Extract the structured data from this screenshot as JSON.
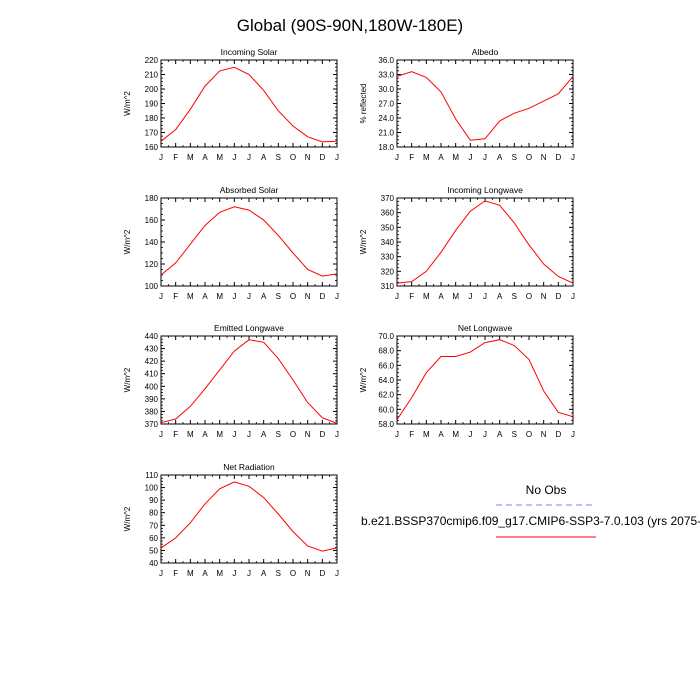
{
  "page": {
    "title": "Global (90S-90N,180W-180E)"
  },
  "legend": {
    "obs_label": "No Obs",
    "case_label": "b.e21.BSSP370cmip6.f09_g17.CMIP6-SSP3-7.0.103 (yrs 2075-",
    "colors": {
      "obs": "#7f7fff",
      "case": "#ff0000"
    }
  },
  "months": [
    "J",
    "F",
    "M",
    "A",
    "M",
    "J",
    "J",
    "A",
    "S",
    "O",
    "N",
    "D",
    "J"
  ],
  "chart_data": [
    {
      "type": "line",
      "title": "Incoming Solar",
      "ylabel": "W/m^2",
      "ylim": [
        160,
        220
      ],
      "yticks": [
        160,
        170,
        180,
        190,
        200,
        210,
        220
      ],
      "ytick_labels": [
        "160",
        "170",
        "180",
        "190",
        "200",
        "210",
        "220"
      ],
      "x": [
        "J",
        "F",
        "M",
        "A",
        "M",
        "J",
        "J",
        "A",
        "S",
        "O",
        "N",
        "D",
        "J"
      ],
      "series": [
        {
          "values": [
            164,
            172,
            186,
            202,
            212.5,
            215,
            210,
            199,
            185,
            174.5,
            167,
            163.5,
            164
          ],
          "color": "#ff0000"
        }
      ]
    },
    {
      "type": "line",
      "title": "Albedo",
      "ylabel": "% reflected",
      "ylim": [
        18.0,
        36.0
      ],
      "yticks": [
        18,
        21,
        24,
        27,
        30,
        33,
        36
      ],
      "ytick_labels": [
        "18.0",
        "21.0",
        "24.0",
        "27.0",
        "30.0",
        "33.0",
        "36.0"
      ],
      "x": [
        "J",
        "F",
        "M",
        "A",
        "M",
        "J",
        "J",
        "A",
        "S",
        "O",
        "N",
        "D",
        "J"
      ],
      "series": [
        {
          "values": [
            32.6,
            33.6,
            32.4,
            29.4,
            23.8,
            19.4,
            19.7,
            23.4,
            25.0,
            26.0,
            27.5,
            29.0,
            32.6
          ],
          "color": "#ff0000"
        }
      ]
    },
    {
      "type": "line",
      "title": "Absorbed Solar",
      "ylabel": "W/m^2",
      "ylim": [
        100,
        180
      ],
      "yticks": [
        100,
        120,
        140,
        160,
        180
      ],
      "ytick_labels": [
        "100",
        "120",
        "140",
        "160",
        "180"
      ],
      "x": [
        "J",
        "F",
        "M",
        "A",
        "M",
        "J",
        "J",
        "A",
        "S",
        "O",
        "N",
        "D",
        "J"
      ],
      "series": [
        {
          "values": [
            110,
            121,
            138,
            155,
            167,
            172,
            169,
            160,
            146,
            130,
            115,
            109,
            111
          ],
          "color": "#ff0000"
        }
      ]
    },
    {
      "type": "line",
      "title": "Incoming Longwave",
      "ylabel": "W/m^2",
      "ylim": [
        310,
        370
      ],
      "yticks": [
        310,
        320,
        330,
        340,
        350,
        360,
        370
      ],
      "ytick_labels": [
        "310",
        "320",
        "330",
        "340",
        "350",
        "360",
        "370"
      ],
      "x": [
        "J",
        "F",
        "M",
        "A",
        "M",
        "J",
        "J",
        "A",
        "S",
        "O",
        "N",
        "D",
        "J"
      ],
      "series": [
        {
          "values": [
            312,
            313,
            320,
            333,
            348,
            361,
            368,
            365,
            353,
            338,
            325,
            316.5,
            312
          ],
          "color": "#ff0000"
        }
      ]
    },
    {
      "type": "line",
      "title": "Emitted Longwave",
      "ylabel": "W/m^2",
      "ylim": [
        370,
        440
      ],
      "yticks": [
        370,
        380,
        390,
        400,
        410,
        420,
        430,
        440
      ],
      "ytick_labels": [
        "370",
        "380",
        "390",
        "400",
        "410",
        "420",
        "430",
        "440"
      ],
      "x": [
        "J",
        "F",
        "M",
        "A",
        "M",
        "J",
        "J",
        "A",
        "S",
        "O",
        "N",
        "D",
        "J"
      ],
      "series": [
        {
          "values": [
            371,
            374,
            384,
            398,
            413,
            428,
            437,
            435,
            422,
            405,
            387,
            375,
            370.5
          ],
          "color": "#ff0000"
        }
      ]
    },
    {
      "type": "line",
      "title": "Net Longwave",
      "ylabel": "W/m^2",
      "ylim": [
        58.0,
        70.0
      ],
      "yticks": [
        58,
        60,
        62,
        64,
        66,
        68,
        70
      ],
      "ytick_labels": [
        "58.0",
        "60.0",
        "62.0",
        "64.0",
        "66.0",
        "68.0",
        "70.0"
      ],
      "x": [
        "J",
        "F",
        "M",
        "A",
        "M",
        "J",
        "J",
        "A",
        "S",
        "O",
        "N",
        "D",
        "J"
      ],
      "series": [
        {
          "values": [
            58.6,
            61.6,
            65.0,
            67.2,
            67.2,
            67.8,
            69.1,
            69.5,
            68.7,
            66.8,
            62.5,
            59.6,
            59.0
          ],
          "color": "#ff0000"
        }
      ]
    },
    {
      "type": "line",
      "title": "Net Radiation",
      "ylabel": "W/m^2",
      "ylim": [
        40,
        110
      ],
      "yticks": [
        40,
        50,
        60,
        70,
        80,
        90,
        100,
        110
      ],
      "ytick_labels": [
        "40",
        "50",
        "60",
        "70",
        "80",
        "90",
        "100",
        "110"
      ],
      "x": [
        "J",
        "F",
        "M",
        "A",
        "M",
        "J",
        "J",
        "A",
        "S",
        "O",
        "N",
        "D",
        "J"
      ],
      "series": [
        {
          "values": [
            52,
            60,
            72,
            87,
            99,
            104.5,
            101,
            92,
            79,
            65,
            53.5,
            49.5,
            52
          ],
          "color": "#ff0000"
        }
      ]
    }
  ]
}
